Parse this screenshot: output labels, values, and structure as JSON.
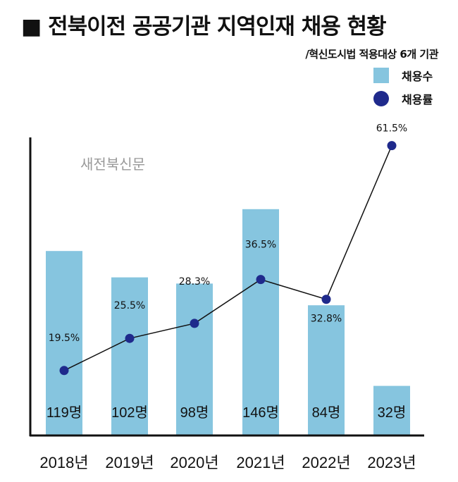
{
  "chart_data": {
    "type": "bar",
    "title": "■ 전북이전 공공기관 지역인재 채용 현황",
    "subtitle": "/혁신도시법 적용대상 6개 기관",
    "categories": [
      "2018년",
      "2019년",
      "2020년",
      "2021년",
      "2022년",
      "2023년"
    ],
    "series": [
      {
        "name": "채용수",
        "type": "bar",
        "values": [
          119,
          102,
          98,
          146,
          84,
          32
        ],
        "labels": [
          "119명",
          "102명",
          "98명",
          "146명",
          "84명",
          "32명"
        ],
        "color": "#86c5df"
      },
      {
        "name": "채용률",
        "type": "line",
        "values": [
          19.5,
          25.5,
          28.3,
          36.5,
          32.8,
          61.5
        ],
        "labels": [
          "19.5%",
          "25.5%",
          "28.3%",
          "36.5%",
          "32.8%",
          "61.5%"
        ],
        "color": "#1f2a8c"
      }
    ],
    "legend_position": "top-right",
    "grid": false,
    "watermark": "새전북신문"
  }
}
